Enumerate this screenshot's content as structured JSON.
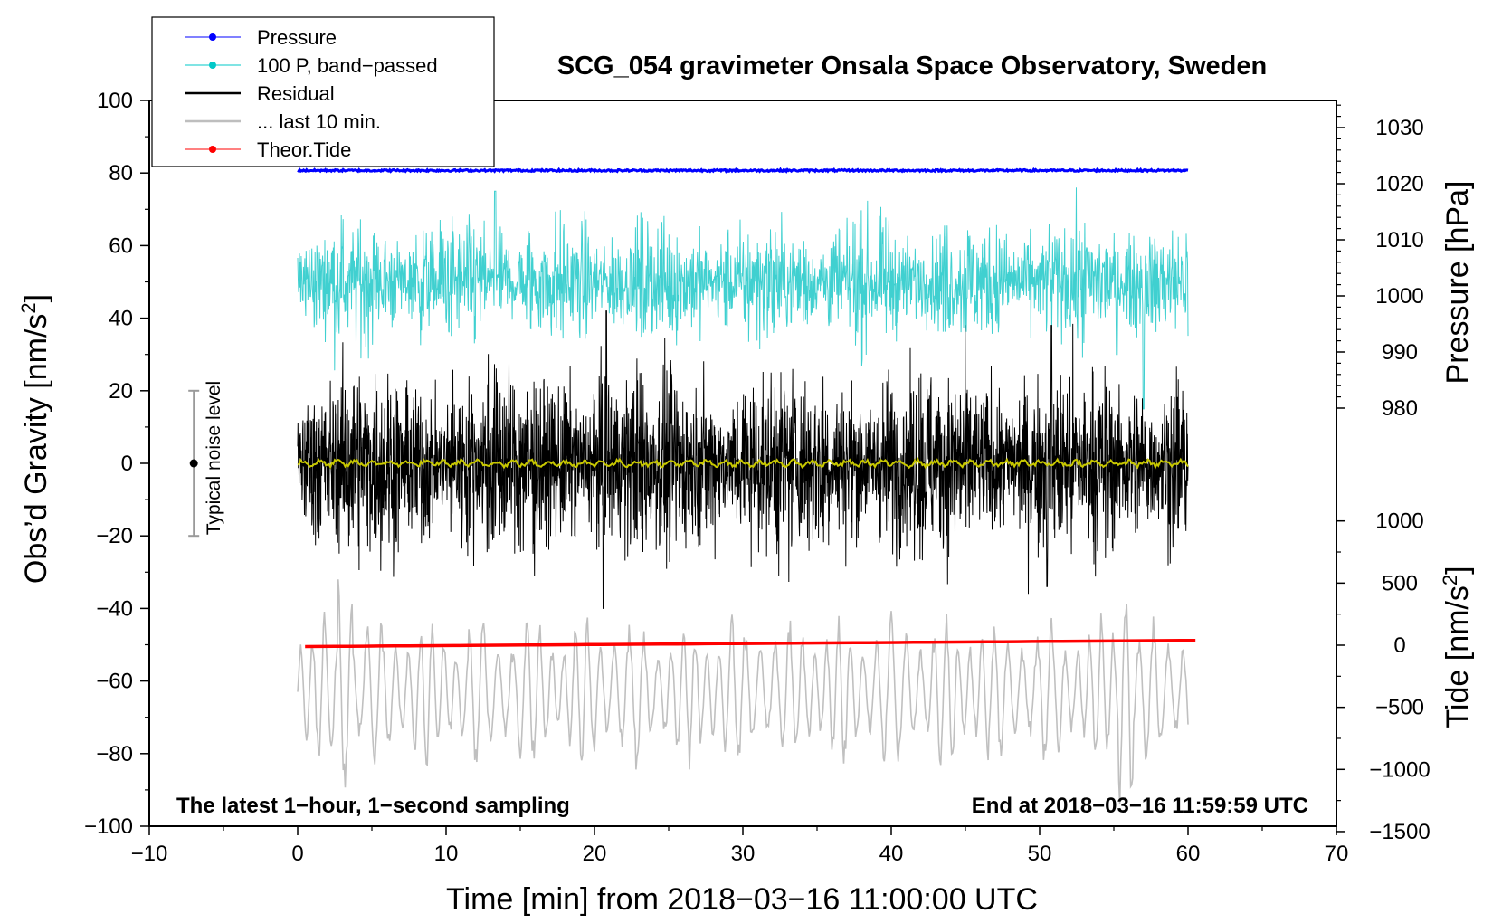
{
  "chart_data": {
    "type": "line",
    "title": "SCG_054 gravimeter Onsala Space Observatory, Sweden",
    "xlabel": "Time [min] from 2018−03−16 11:00:00 UTC",
    "ylabel_left": "Obs’d Gravity [nm/s",
    "ylabel_left_sup": "2",
    "ylabel_left_tail": "]",
    "ylabel_right_top": "Pressure [hPa]",
    "ylabel_right_bottom": "Tide [nm/s",
    "ylabel_right_bottom_sup": "2",
    "ylabel_right_bottom_tail": "]",
    "xlim": [
      -10,
      70
    ],
    "ylim_left": [
      -100,
      100
    ],
    "pressure_axis": {
      "ticks": [
        980,
        990,
        1000,
        1010,
        1020,
        1030
      ],
      "labels": [
        "980",
        "990",
        "1000",
        "1010",
        "1020",
        "1030"
      ]
    },
    "tide_axis": {
      "ticks": [
        1000,
        500,
        0,
        -500,
        -1000,
        -1500
      ],
      "labels": [
        "1000",
        "500",
        "0",
        "−500",
        "−1000",
        "−1500"
      ]
    },
    "x_ticks": [
      -10,
      0,
      10,
      20,
      30,
      40,
      50,
      60,
      70
    ],
    "x_tick_labels": [
      "−10",
      "0",
      "10",
      "20",
      "30",
      "40",
      "50",
      "60",
      "70"
    ],
    "y_ticks": [
      -100,
      -80,
      -60,
      -40,
      -20,
      0,
      20,
      40,
      60,
      80,
      100
    ],
    "y_tick_labels": [
      "−100",
      "−80",
      "−60",
      "−40",
      "−20",
      "0",
      "20",
      "40",
      "60",
      "80",
      "100"
    ],
    "legend": [
      {
        "label": "Pressure",
        "color": "#0000ff",
        "marker": true
      },
      {
        "label": "100 P, band−passed",
        "color": "#00c8c8",
        "marker": true
      },
      {
        "label": "Residual",
        "color": "#000000",
        "marker": false
      },
      {
        "label": "... last 10 min.",
        "color": "#bebebe",
        "marker": false
      },
      {
        "label": "Theor.Tide",
        "color": "#ff0000",
        "marker": true
      }
    ],
    "annotations": {
      "left": "The latest 1−hour, 1−second sampling",
      "right": "End at 2018−03−16 11:59:59 UTC",
      "noise": "Typical noise level"
    },
    "noise_bar": {
      "x": -7,
      "center": 0,
      "low": -20,
      "high": 20
    },
    "series": [
      {
        "name": "Pressure",
        "color": "#0000ff",
        "x_range": [
          0,
          60
        ],
        "level": 80.7,
        "amp": 0.5
      },
      {
        "name": "100 P, band−passed",
        "color": "#40d0d0",
        "x_range": [
          0,
          60
        ],
        "center": 50,
        "amp": 9
      },
      {
        "name": "Residual",
        "color": "#000000",
        "x_range": [
          0,
          60
        ],
        "center": 0,
        "amp": 12
      },
      {
        "name": "Residual (smoothed)",
        "color": "#c8c800",
        "x_range": [
          0,
          60
        ],
        "center": 0,
        "amp": 0.8
      },
      {
        "name": "... last 10 min.",
        "color": "#c0c0c0",
        "x_range": [
          0,
          60
        ],
        "center": -63,
        "amp": 11
      },
      {
        "name": "Theor.Tide",
        "color": "#ff0000",
        "x_range": [
          0.5,
          60.5
        ],
        "start": -50.5,
        "end": -48.8
      }
    ]
  }
}
